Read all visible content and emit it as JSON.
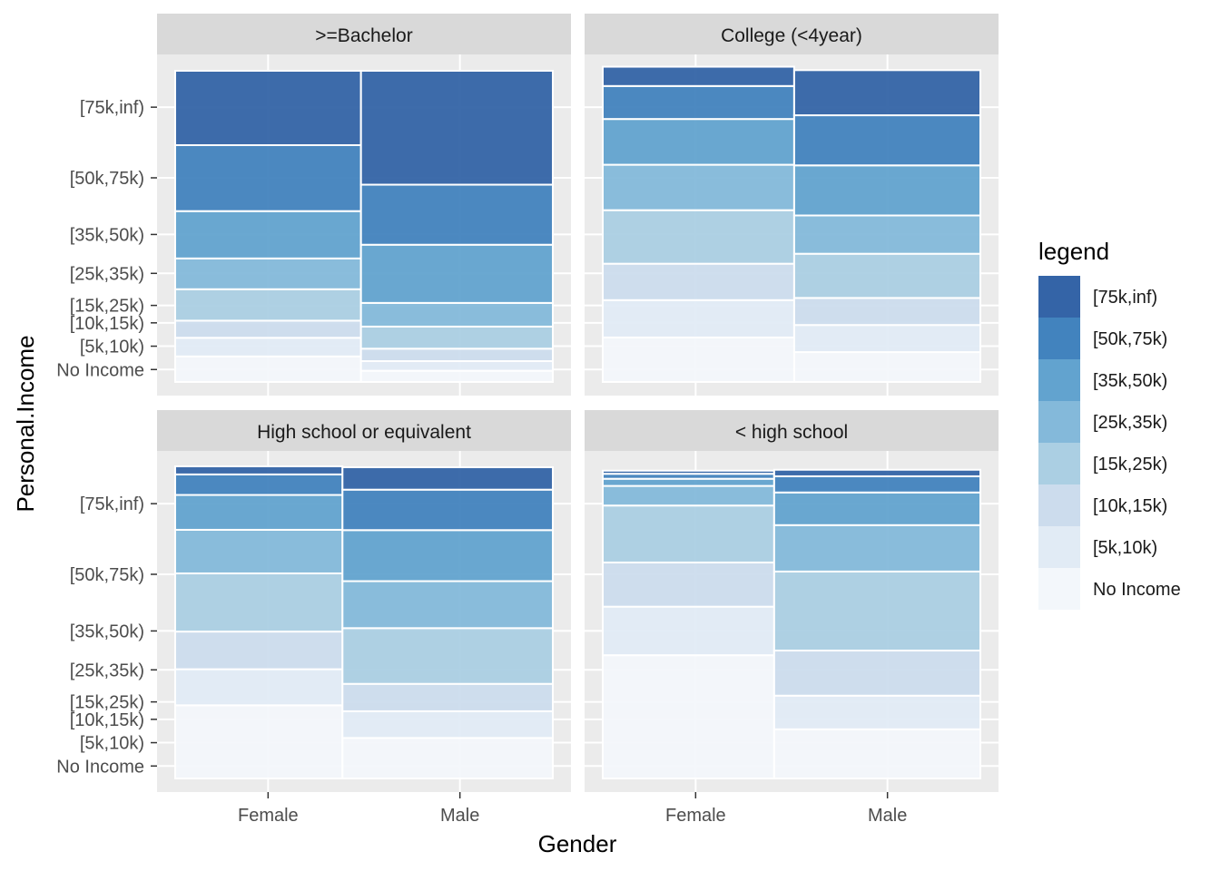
{
  "chart_data": {
    "type": "mosaic",
    "xlabel": "Gender",
    "ylabel": "Personal.Income",
    "legend": {
      "title": "legend",
      "position": "right",
      "labels": [
        "[75k,inf)",
        "[50k,75k)",
        "[35k,50k)",
        "[25k,35k)",
        "[15k,25k)",
        "[10k,15k)",
        "[5k,10k)",
        "No Income"
      ]
    },
    "income_levels": [
      "No Income",
      "[5k,10k)",
      "[10k,15k)",
      "[15k,25k)",
      "[25k,35k)",
      "[35k,50k)",
      "[50k,75k)",
      "[75k,inf)"
    ],
    "colors": {
      "No Income": "#f3f7fb",
      "[5k,10k)": "#e1ebf5",
      "[10k,15k)": "#ccdced",
      "[15k,25k)": "#abcfe3",
      "[25k,35k)": "#84b9da",
      "[35k,50k)": "#62a3cf",
      "[50k,75k)": "#4283be",
      "[75k,inf)": "#3464a7"
    },
    "grid": true,
    "panels": [
      {
        "title": ">=Bachelor",
        "y_ticks": [
          0.04,
          0.115,
          0.19,
          0.246,
          0.349,
          0.474,
          0.656,
          0.883
        ],
        "x_ticks": [
          0.246,
          0.754
        ],
        "columns": [
          {
            "label": "Female",
            "share": 0.492,
            "proportions": [
              0.082,
              0.06,
              0.055,
              0.101,
              0.099,
              0.152,
              0.212,
              0.239
            ]
          },
          {
            "label": "Male",
            "share": 0.508,
            "proportions": [
              0.036,
              0.031,
              0.04,
              0.071,
              0.076,
              0.187,
              0.193,
              0.366
            ]
          }
        ]
      },
      {
        "title": "College (<4year)",
        "y_ticks": [
          0.04,
          0.115,
          0.19,
          0.246,
          0.349,
          0.474,
          0.656,
          0.883
        ],
        "x_ticks": [
          0.246,
          0.754
        ],
        "columns": [
          {
            "label": "Female",
            "share": 0.507,
            "proportions": [
              0.143,
              0.12,
              0.117,
              0.172,
              0.146,
              0.147,
              0.106,
              0.062
            ]
          },
          {
            "label": "Male",
            "share": 0.493,
            "proportions": [
              0.096,
              0.087,
              0.087,
              0.142,
              0.123,
              0.161,
              0.161,
              0.145
            ]
          }
        ]
      },
      {
        "title": "High school or equivalent",
        "y_ticks": [
          0.04,
          0.115,
          0.19,
          0.246,
          0.349,
          0.474,
          0.656,
          0.883
        ],
        "x_ticks": [
          0.246,
          0.754
        ],
        "columns": [
          {
            "label": "Female",
            "share": 0.443,
            "proportions": [
              0.235,
              0.116,
              0.121,
              0.187,
              0.14,
              0.112,
              0.066,
              0.026
            ]
          },
          {
            "label": "Male",
            "share": 0.557,
            "proportions": [
              0.13,
              0.086,
              0.088,
              0.179,
              0.151,
              0.164,
              0.13,
              0.072
            ]
          }
        ]
      },
      {
        "title": "< high school",
        "y_ticks": [
          0.04,
          0.115,
          0.19,
          0.246,
          0.349,
          0.474,
          0.656,
          0.883
        ],
        "x_ticks": [
          0.246,
          0.754
        ],
        "columns": [
          {
            "label": "Female",
            "share": 0.454,
            "proportions": [
              0.396,
              0.156,
              0.142,
              0.183,
              0.063,
              0.023,
              0.016,
              0.01
            ]
          },
          {
            "label": "Male",
            "share": 0.546,
            "proportions": [
              0.158,
              0.108,
              0.145,
              0.254,
              0.149,
              0.105,
              0.052,
              0.021
            ]
          }
        ]
      }
    ]
  }
}
